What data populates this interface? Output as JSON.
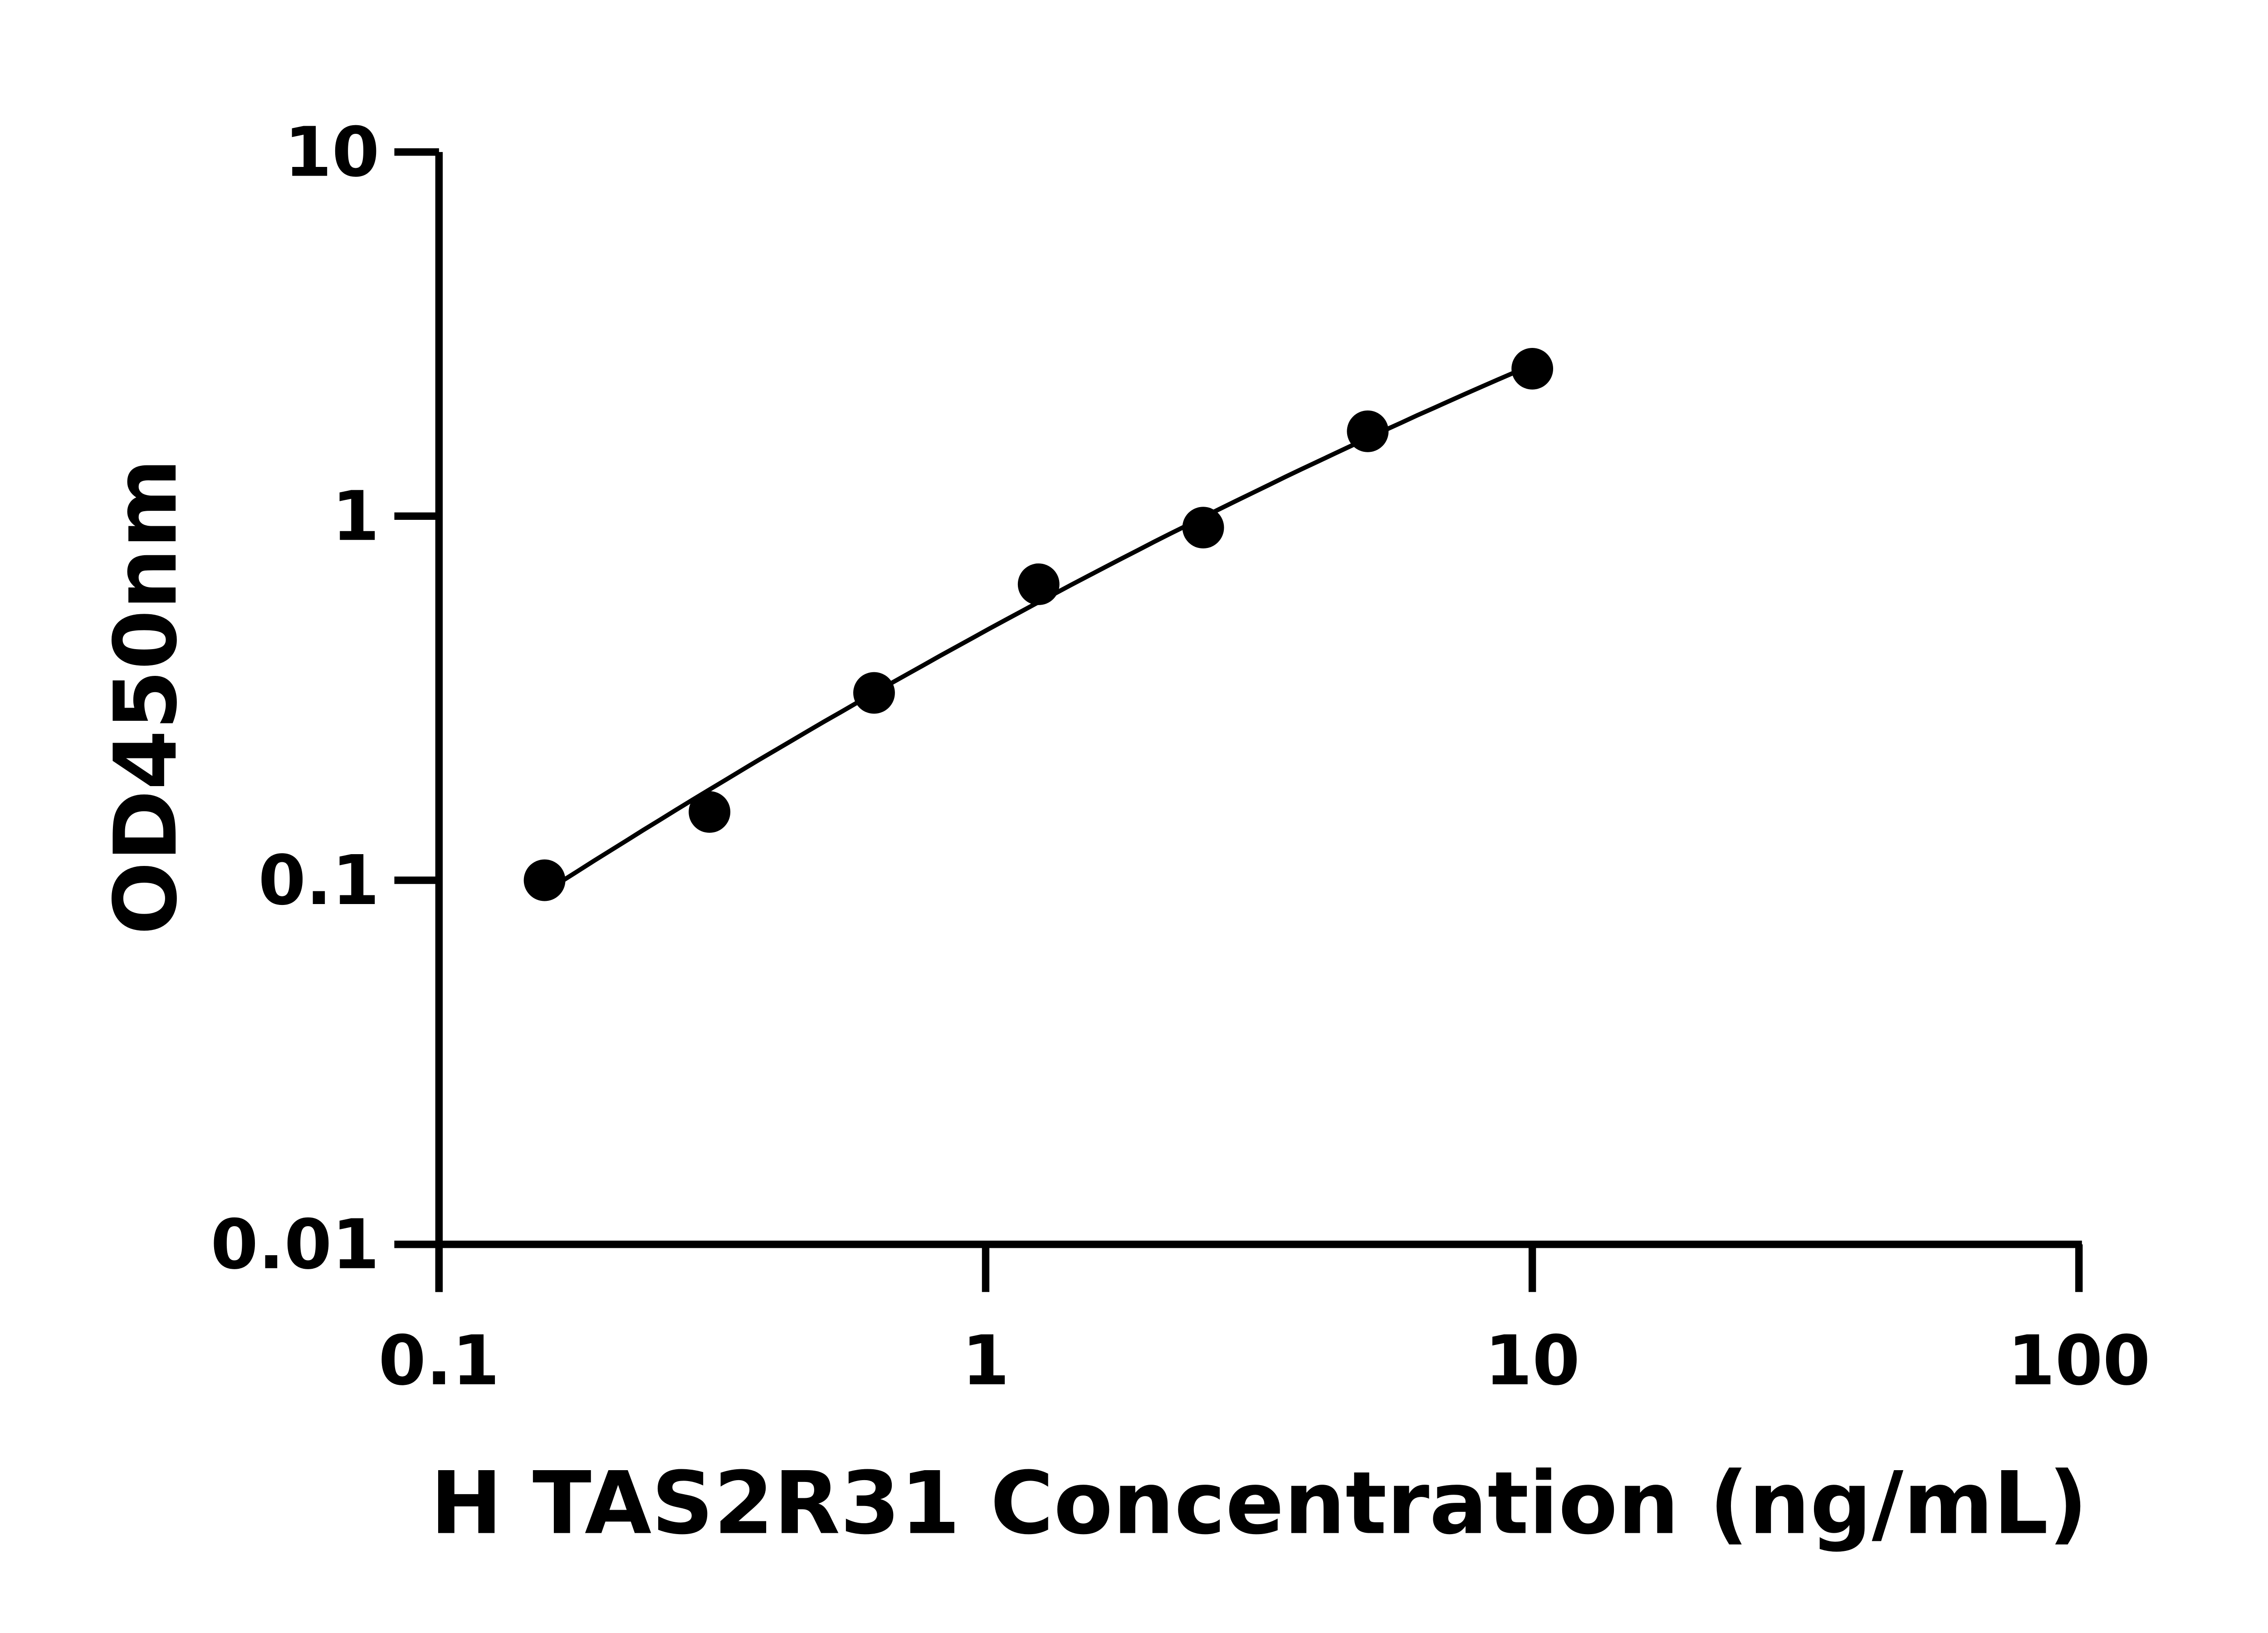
{
  "chart_data": {
    "type": "scatter",
    "title": "",
    "xlabel": "H TAS2R31 Concentration (ng/mL)",
    "ylabel": "OD450nm",
    "xscale": "log",
    "yscale": "log",
    "xlim": [
      0.1,
      100
    ],
    "ylim": [
      0.01,
      10
    ],
    "xticks": [
      "0.1",
      "1",
      "10",
      "100"
    ],
    "yticks": [
      "0.01",
      "0.1",
      "1",
      "10"
    ],
    "grid": false,
    "marker_color": "#000000",
    "line_color": "#000000",
    "fit_line": true,
    "points": [
      {
        "x": 0.156,
        "y": 0.1
      },
      {
        "x": 0.3125,
        "y": 0.154
      },
      {
        "x": 0.625,
        "y": 0.327
      },
      {
        "x": 1.25,
        "y": 0.65
      },
      {
        "x": 2.5,
        "y": 0.93
      },
      {
        "x": 5,
        "y": 1.71
      },
      {
        "x": 10,
        "y": 2.54
      }
    ]
  }
}
